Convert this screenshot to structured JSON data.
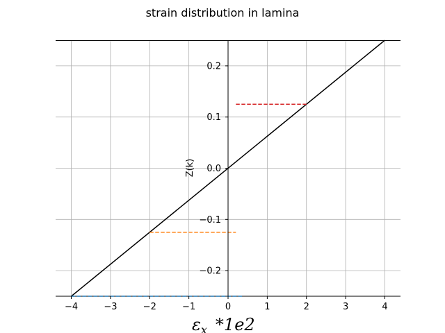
{
  "chart_data": {
    "type": "line",
    "title": "strain distribution in lamina",
    "xlabel": {
      "symbol": "ε",
      "subscript": "x",
      "suffix": "*1e2"
    },
    "ylabel": "Z(k)",
    "xlim": [
      -4.4,
      4.4
    ],
    "ylim": [
      -0.25,
      0.25
    ],
    "xticks": [
      -4,
      -3,
      -2,
      -1,
      0,
      1,
      2,
      3,
      4
    ],
    "xtick_labels": [
      "−4",
      "−3",
      "−2",
      "−1",
      "0",
      "1",
      "2",
      "3",
      "4"
    ],
    "yticks": [
      -0.2,
      -0.1,
      0.0,
      0.1,
      0.2
    ],
    "ytick_labels": [
      "−0.2",
      "−0.1",
      "0.0",
      "0.1",
      "0.2"
    ],
    "grid": true,
    "axes_through_origin": true,
    "series": [
      {
        "style": "solid",
        "color": "#000000",
        "x": [
          -4.0,
          4.0
        ],
        "y": [
          -0.25,
          0.25
        ]
      },
      {
        "style": "dashed",
        "color": "#d62728",
        "x": [
          0.2,
          2.0
        ],
        "y": [
          0.125,
          0.125
        ]
      },
      {
        "style": "dashed",
        "color": "#ff7f0e",
        "x": [
          -2.0,
          0.2
        ],
        "y": [
          -0.125,
          -0.125
        ]
      },
      {
        "style": "dashed",
        "color": "#1f77b4",
        "x": [
          -4.0,
          0.4
        ],
        "y": [
          -0.25,
          -0.25
        ]
      }
    ]
  }
}
